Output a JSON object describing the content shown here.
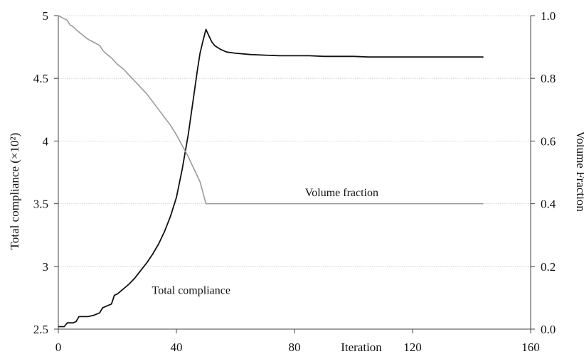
{
  "chart_data": {
    "type": "line",
    "title": "",
    "xlabel": "Iteration",
    "ylabel_left": "Total compliance (×10²)",
    "ylabel_right": "Volume Fraction",
    "xlim": [
      0,
      160
    ],
    "ylim_left": [
      2.5,
      5
    ],
    "ylim_right": [
      0.0,
      1.0
    ],
    "x_ticks": [
      "0",
      "40",
      "80",
      "120",
      "160"
    ],
    "y_left_ticks": [
      "2.5",
      "3",
      "3.5",
      "4",
      "4.5",
      "5"
    ],
    "y_right_ticks": [
      "0.0",
      "0.2",
      "0.4",
      "0.6",
      "0.8",
      "1.0"
    ],
    "grid": "horizontal",
    "annotations": [
      {
        "text": "Volume fraction",
        "x": 96,
        "y_right": 0.435
      },
      {
        "text": "Total compliance",
        "x": 45,
        "y_left": 2.81
      }
    ],
    "series": [
      {
        "name": "Total compliance",
        "axis": "left",
        "color": "#111111",
        "x": [
          0,
          2,
          3,
          5,
          6,
          7,
          8,
          10,
          12,
          13,
          14,
          15,
          16,
          18,
          19,
          20,
          22,
          24,
          26,
          28,
          30,
          32,
          34,
          36,
          38,
          40,
          42,
          44,
          46,
          47,
          48,
          49,
          50,
          51,
          52,
          53,
          55,
          57,
          60,
          65,
          70,
          75,
          80,
          85,
          90,
          95,
          100,
          105,
          110,
          115,
          120,
          125,
          130,
          135,
          140,
          144
        ],
        "values": [
          2.52,
          2.52,
          2.55,
          2.55,
          2.56,
          2.6,
          2.6,
          2.6,
          2.61,
          2.62,
          2.63,
          2.67,
          2.68,
          2.7,
          2.77,
          2.78,
          2.82,
          2.86,
          2.91,
          2.97,
          3.03,
          3.1,
          3.18,
          3.28,
          3.4,
          3.55,
          3.78,
          4.05,
          4.38,
          4.55,
          4.7,
          4.8,
          4.89,
          4.84,
          4.79,
          4.76,
          4.73,
          4.71,
          4.7,
          4.69,
          4.685,
          4.68,
          4.68,
          4.68,
          4.675,
          4.675,
          4.675,
          4.67,
          4.67,
          4.67,
          4.67,
          4.67,
          4.67,
          4.67,
          4.67,
          4.67
        ]
      },
      {
        "name": "Volume fraction",
        "axis": "right",
        "color": "#9a9a9a",
        "x": [
          0,
          1,
          2,
          3,
          4,
          5,
          6,
          8,
          10,
          12,
          14,
          15,
          16,
          18,
          20,
          22,
          24,
          26,
          28,
          30,
          32,
          34,
          36,
          38,
          40,
          42,
          44,
          46,
          48,
          50,
          52,
          55,
          60,
          70,
          80,
          90,
          100,
          110,
          120,
          130,
          140,
          144
        ],
        "values": [
          1.0,
          0.995,
          0.99,
          0.985,
          0.97,
          0.965,
          0.955,
          0.94,
          0.925,
          0.915,
          0.905,
          0.89,
          0.88,
          0.865,
          0.845,
          0.83,
          0.81,
          0.79,
          0.77,
          0.75,
          0.725,
          0.7,
          0.675,
          0.65,
          0.62,
          0.585,
          0.55,
          0.51,
          0.47,
          0.4,
          0.4,
          0.4,
          0.4,
          0.4,
          0.4,
          0.4,
          0.4,
          0.4,
          0.4,
          0.4,
          0.4,
          0.4
        ]
      }
    ]
  }
}
